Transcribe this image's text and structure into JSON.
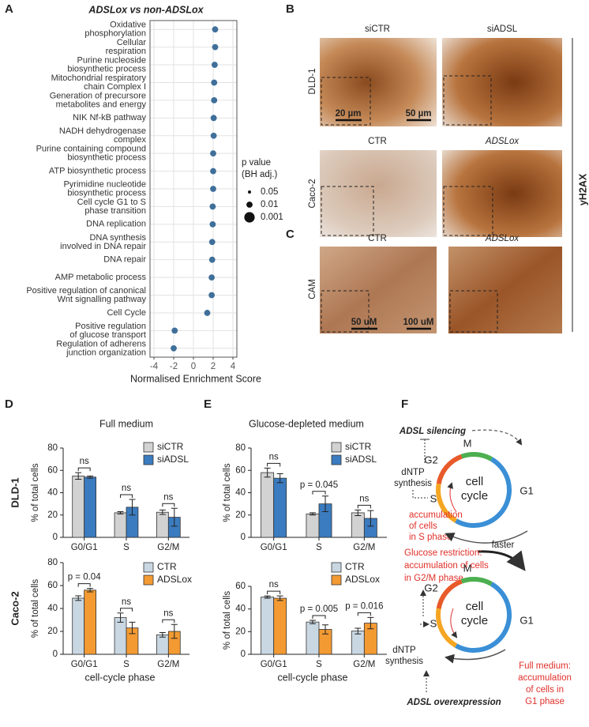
{
  "panel_labels": [
    "A",
    "B",
    "C",
    "D",
    "E",
    "F"
  ],
  "chart_data": [
    {
      "type": "dot",
      "title": "ADSLox vs non-ADSLox",
      "categories": [
        "Oxidative\nphosphorylation",
        "Cellular\nrespiration",
        "Purine nucleoside\nbiosynthetic process",
        "Mitochondrial respiratory\nchain Complex I",
        "Generation of precursore\nmetabolites and energy",
        "NIK Nf-kB pathway",
        "NADH dehydrogenase\ncomplex",
        "Purine containing compound\nbiosynthetic process",
        "ATP biosynthetic process",
        "Pyrimidine nucleotide\nbiosynthetic process",
        "Cell cycle G1 to S\nphase transition",
        "DNA replication",
        "DNA synthesis\ninvolved in DNA repair",
        "DNA repair",
        "AMP metabolic process",
        "Positive regulation of canonical\nWnt signalling pathway",
        "Cell Cycle",
        "Positive regulation\nof glucose transport",
        "Regulation of adherens\njunction organization"
      ],
      "values": [
        2.2,
        2.2,
        2.15,
        2.1,
        2.1,
        2.05,
        2.05,
        2.0,
        2.0,
        2.0,
        1.95,
        1.95,
        1.9,
        1.9,
        1.85,
        1.85,
        1.4,
        -1.9,
        -2.0
      ],
      "pvalues": [
        0.01,
        0.01,
        0.01,
        0.01,
        0.01,
        0.01,
        0.01,
        0.01,
        0.01,
        0.01,
        0.01,
        0.01,
        0.01,
        0.01,
        0.01,
        0.01,
        0.01,
        0.01,
        0.01
      ],
      "color": "#3f6f9a",
      "xlim": [
        -4.4,
        4.4
      ],
      "xticks": [
        -4,
        -2,
        0,
        2,
        4
      ],
      "xlabel": "Normalised Enrichment Score",
      "grid": true,
      "legend_title": "p value\n(BH adj.)",
      "size_legend": [
        0.05,
        0.01,
        0.001
      ]
    },
    {
      "type": "bar",
      "row_label": "DLD-1",
      "ylabel": "% of total cells",
      "categories": [
        "G0/G1",
        "S",
        "G2/M"
      ],
      "series": [
        {
          "name": "siCTR",
          "color": "#d2d2d2",
          "values": [
            55,
            22,
            22.5
          ],
          "errors": [
            3,
            1,
            2
          ]
        },
        {
          "name": "siADSL",
          "color": "#3b7bbf",
          "values": [
            54,
            27,
            18
          ],
          "errors": [
            1,
            7,
            8
          ]
        }
      ],
      "ylim": [
        0,
        80
      ],
      "yticks": [
        0,
        20,
        40,
        60,
        80
      ],
      "annotations": [
        "ns",
        "ns",
        "ns"
      ]
    },
    {
      "type": "bar",
      "row_label": "Caco-2",
      "ylabel": "% of total cells",
      "xlabel": "cell-cycle phase",
      "categories": [
        "G0/G1",
        "S",
        "G2/M"
      ],
      "series": [
        {
          "name": "CTR",
          "color": "#c9d7e2",
          "values": [
            49,
            32,
            17
          ],
          "errors": [
            2,
            4,
            2
          ]
        },
        {
          "name": "ADSLox",
          "color": "#f39a32",
          "values": [
            56,
            23,
            20
          ],
          "errors": [
            1.5,
            5,
            6
          ]
        }
      ],
      "ylim": [
        0,
        80
      ],
      "yticks": [
        0,
        20,
        40,
        60,
        80
      ],
      "annotations": [
        "p = 0.04",
        "ns",
        "ns"
      ]
    },
    {
      "type": "bar",
      "ylabel": "% of total cells",
      "categories": [
        "G0/G1",
        "S",
        "G2/M"
      ],
      "series": [
        {
          "name": "siCTR",
          "color": "#d2d2d2",
          "values": [
            58,
            21,
            22
          ],
          "errors": [
            4,
            1,
            2.5
          ]
        },
        {
          "name": "siADSL",
          "color": "#3b7bbf",
          "values": [
            53,
            30,
            17
          ],
          "errors": [
            4,
            7,
            7
          ]
        }
      ],
      "ylim": [
        0,
        80
      ],
      "yticks": [
        0,
        20,
        40,
        60,
        80
      ],
      "annotations": [
        "ns",
        "p = 0.045",
        "ns"
      ]
    },
    {
      "type": "bar",
      "ylabel": "% of total cells",
      "xlabel": "cell-cycle phase",
      "categories": [
        "G0/G1",
        "S",
        "G2/M"
      ],
      "series": [
        {
          "name": "CTR",
          "color": "#c9d7e2",
          "values": [
            50.5,
            28.5,
            20.5
          ],
          "errors": [
            1,
            1.5,
            2.5
          ]
        },
        {
          "name": "ADSLox",
          "color": "#f39a32",
          "values": [
            49.5,
            22,
            27.5
          ],
          "errors": [
            2,
            4,
            5
          ]
        }
      ],
      "ylim": [
        0,
        60
      ],
      "yticks": [
        0,
        20,
        40,
        60
      ],
      "annotations": [
        "ns",
        "p = 0.005",
        "p = 0.016"
      ]
    }
  ],
  "panel_b": {
    "col1": "siCTR",
    "col2": "siADSL",
    "row1": "DLD-1",
    "scale1": "20 µm",
    "scale2": "50 µm",
    "col3": "CTR",
    "col4": "ADSLox",
    "row2": "Caco-2",
    "stain": "yH2AX"
  },
  "panel_c": {
    "col1": "CTR",
    "col2": "ADSLox",
    "row": "CAM",
    "scale1": "50 uM",
    "scale2": "100 uM"
  },
  "panel_d": {
    "title": "Full medium"
  },
  "panel_e": {
    "title": "Glucose-depleted medium"
  },
  "panel_f": {
    "top": {
      "driver": "ADSL silencing",
      "m": "M",
      "g2": "G2",
      "dntp": "dNTP\nsynthesis",
      "cycle": "cell\ncycle",
      "g1": "G1",
      "s": "S",
      "effect": "accumulation\nof cells\nin S phase"
    },
    "bottom": {
      "faster": "faster",
      "glucose": "Glucose restriction:\naccumulation of cells\nin G2/M phase",
      "m": "M",
      "g2": "G2",
      "s": "S",
      "dntp": "dNTP\nsynthesis",
      "cycle": "cell\ncycle",
      "g1": "G1",
      "full": "Full medium:\naccumulation\nof cells in\nG1 phase",
      "driver": "ADSL overexpression"
    }
  }
}
